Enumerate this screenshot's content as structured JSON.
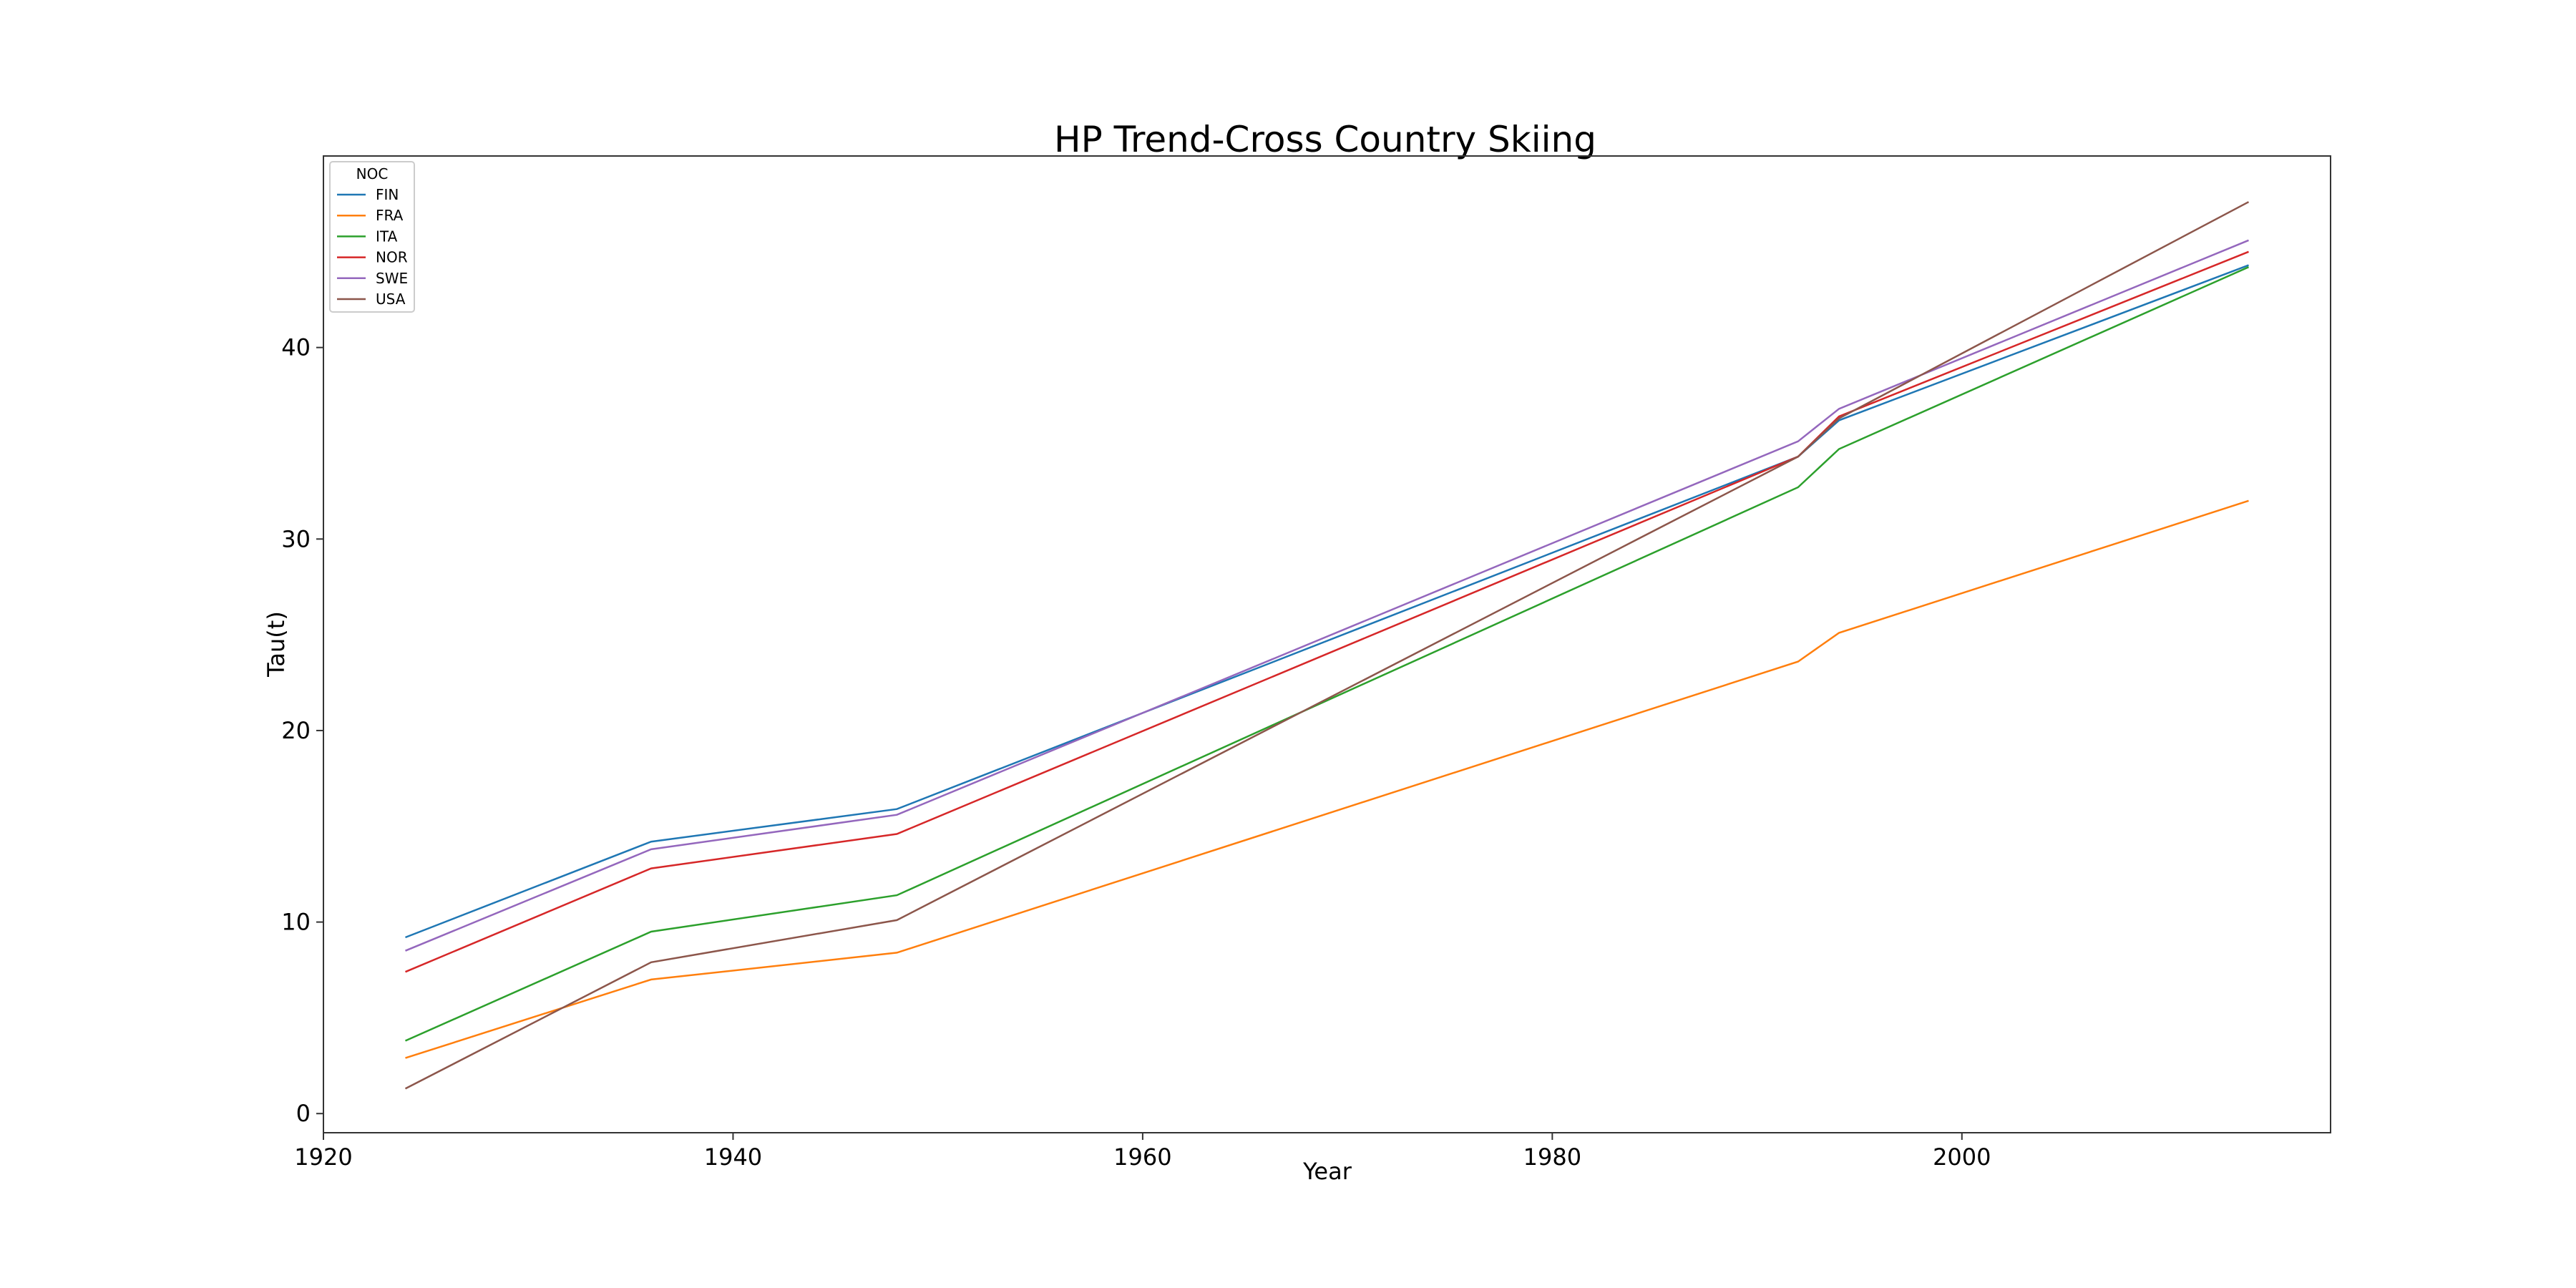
{
  "chart_data": {
    "type": "line",
    "title": "HP Trend-Cross Country Skiing",
    "xlabel": "Year",
    "ylabel": "Tau(t)",
    "xlim": [
      1920,
      2018
    ],
    "ylim": [
      -1,
      50
    ],
    "xticks": [
      1920,
      1940,
      1960,
      1980,
      2000
    ],
    "yticks": [
      0,
      10,
      20,
      30,
      40
    ],
    "grid": false,
    "legend": {
      "title": "NOC",
      "position": "top-left"
    },
    "x": [
      1924,
      1936,
      1948,
      1992,
      1994,
      2014
    ],
    "series": [
      {
        "name": "FIN",
        "color": "#1f77b4",
        "values": [
          9.2,
          14.2,
          15.9,
          34.3,
          36.2,
          44.3
        ]
      },
      {
        "name": "FRA",
        "color": "#ff7f0e",
        "values": [
          2.9,
          7.0,
          8.4,
          23.6,
          25.1,
          32.0
        ]
      },
      {
        "name": "ITA",
        "color": "#2ca02c",
        "values": [
          3.8,
          9.5,
          11.4,
          32.7,
          34.7,
          44.2
        ]
      },
      {
        "name": "NOR",
        "color": "#d62728",
        "values": [
          7.4,
          12.8,
          14.6,
          34.3,
          36.4,
          45.0
        ]
      },
      {
        "name": "SWE",
        "color": "#9467bd",
        "values": [
          8.5,
          13.8,
          15.6,
          35.1,
          36.8,
          45.6
        ]
      },
      {
        "name": "USA",
        "color": "#8c564b",
        "values": [
          1.3,
          7.9,
          10.1,
          34.3,
          36.3,
          47.6
        ]
      }
    ]
  }
}
